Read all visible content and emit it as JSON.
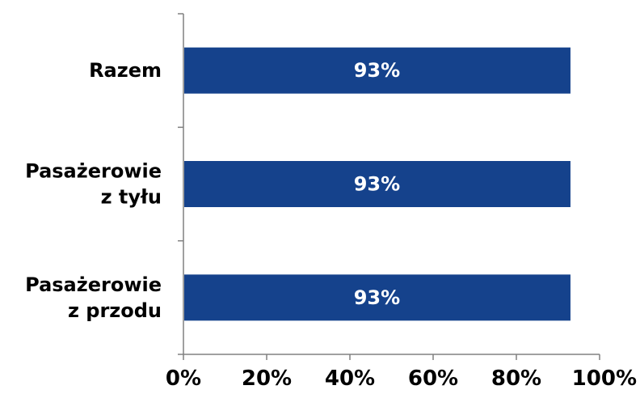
{
  "chart_data": {
    "type": "bar",
    "orientation": "horizontal",
    "categories": [
      [
        "Razem"
      ],
      [
        "Pasażerowie",
        "z tyłu"
      ],
      [
        "Pasażerowie",
        "z przodu"
      ]
    ],
    "values": [
      93,
      93,
      93
    ],
    "data_labels": [
      "93%",
      "93%",
      "93%"
    ],
    "x_ticks": [
      "0%",
      "20%",
      "40%",
      "60%",
      "80%",
      "100%"
    ],
    "xlim": [
      0,
      100
    ],
    "bar_color": "#15428c",
    "label_color": "#ffffff",
    "grid": false,
    "title": "",
    "xlabel": "",
    "ylabel": ""
  }
}
